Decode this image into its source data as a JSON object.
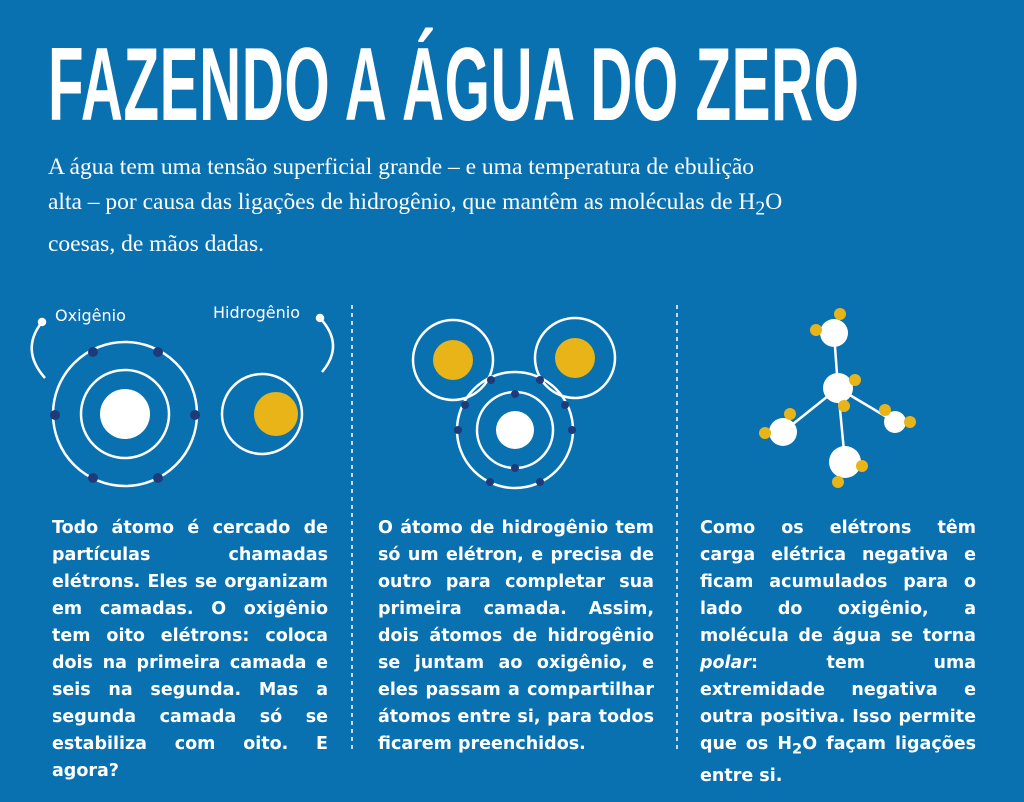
{
  "header": {
    "title": "FAZENDO A ÁGUA DO ZERO",
    "intro": {
      "before": "A água tem uma tensão superficial grande – e uma temperatura de ebulição alta – por causa das ligações de hidrogênio, que mantêm as moléculas de H",
      "subscript": "2",
      "after": "O coesas, de mãos dadas."
    }
  },
  "diagram": {
    "oxygen_label": "Oxigênio",
    "hydrogen_label": "Hidrogênio"
  },
  "columns": [
    {
      "text": "Todo átomo é cercado de partículas chamadas elétrons. Eles se organizam em camadas. O oxigênio tem oito elétrons: coloca dois na primeira camada e seis na segunda. Mas a segunda camada só se estabiliza com oito. E agora?"
    },
    {
      "text": "O átomo de hidrogênio tem só um elétron, e precisa de outro para completar sua primeira camada. Assim, dois átomos de hidrogênio se juntam ao oxigênio, e eles passam a compartilhar átomos entre si, para todos ficarem preenchidos."
    },
    {
      "before": "Como os elétrons têm carga elétrica negativa e ficam acumulados para o lado do oxigênio, a molécula de água se torna ",
      "italic": "polar",
      "middle": ": tem uma extremidade negativa e outra positiva. Isso permite que os H",
      "subscript": "2",
      "after": "O façam ligações entre si."
    }
  ]
}
